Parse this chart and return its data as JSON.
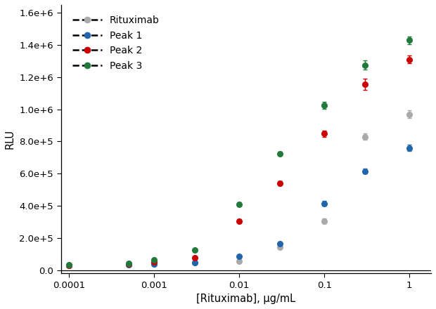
{
  "title": "",
  "xlabel": "[Rituximab], µg/mL",
  "ylabel": "RLU",
  "xlim": [
    0.0001,
    1.3
  ],
  "ylim": [
    -20000,
    1650000.0
  ],
  "series": [
    {
      "name": "Rituximab",
      "color": "#aaaaaa",
      "x": [
        0.0001,
        0.0005,
        0.001,
        0.003,
        0.01,
        0.03,
        0.1,
        0.3,
        1.0
      ],
      "y": [
        28000,
        32000,
        38000,
        45000,
        55000,
        140000,
        305000,
        830000,
        970000
      ],
      "yerr": [
        3000,
        3000,
        3000,
        3000,
        5000,
        8000,
        15000,
        20000,
        25000
      ]
    },
    {
      "name": "Peak 1",
      "color": "#2166ac",
      "x": [
        0.0001,
        0.0005,
        0.001,
        0.003,
        0.01,
        0.03,
        0.1,
        0.3,
        1.0
      ],
      "y": [
        28000,
        32000,
        36000,
        44000,
        85000,
        165000,
        415000,
        615000,
        760000
      ],
      "yerr": [
        3000,
        3000,
        3000,
        3000,
        5000,
        8000,
        15000,
        15000,
        20000
      ]
    },
    {
      "name": "Peak 2",
      "color": "#cc0000",
      "x": [
        0.0001,
        0.0005,
        0.001,
        0.003,
        0.01,
        0.03,
        0.1,
        0.3,
        1.0
      ],
      "y": [
        30000,
        38000,
        52000,
        78000,
        305000,
        540000,
        848000,
        1155000,
        1310000
      ],
      "yerr": [
        3000,
        4000,
        6000,
        7000,
        10000,
        12000,
        20000,
        35000,
        25000
      ]
    },
    {
      "name": "Peak 3",
      "color": "#217a3c",
      "x": [
        0.0001,
        0.0005,
        0.001,
        0.003,
        0.01,
        0.03,
        0.1,
        0.3,
        1.0
      ],
      "y": [
        33000,
        43000,
        62000,
        125000,
        410000,
        725000,
        1025000,
        1275000,
        1430000
      ],
      "yerr": [
        4000,
        4000,
        7000,
        10000,
        12000,
        12000,
        20000,
        28000,
        25000
      ]
    }
  ],
  "yticks": [
    0.0,
    200000,
    400000,
    600000,
    800000,
    1000000,
    1200000,
    1400000,
    1600000
  ],
  "ytick_labels": [
    "0.0",
    "2.0e+5",
    "4.0e+5",
    "6.0e+5",
    "8.0e+5",
    "1.0e+6",
    "1.2e+6",
    "1.4e+6",
    "1.6e+6"
  ],
  "xtick_labels": [
    "0.0001",
    "0.001",
    "0.01",
    "0.1",
    "1"
  ],
  "xtick_values": [
    0.0001,
    0.001,
    0.01,
    0.1,
    1.0
  ]
}
